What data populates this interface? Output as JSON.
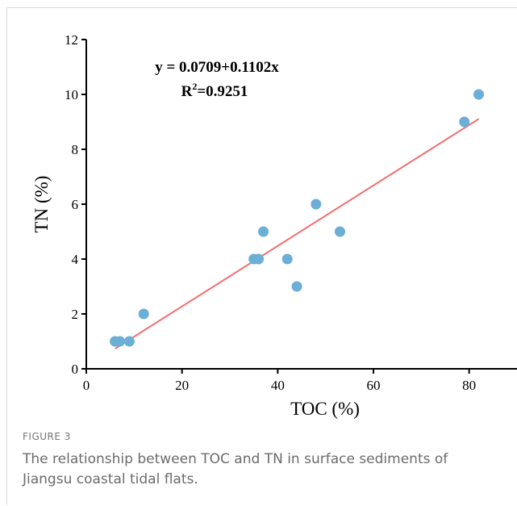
{
  "figure": {
    "label": "FIGURE 3",
    "caption": "The relationship between TOC and TN in surface sediments of Jiangsu coastal tidal flats."
  },
  "chart_data": {
    "type": "scatter",
    "title": "",
    "xlabel": "TOC (%)",
    "ylabel": "TN (%)",
    "xlim": [
      0,
      90
    ],
    "ylim": [
      0,
      12
    ],
    "xticks": [
      0,
      20,
      40,
      60,
      80
    ],
    "yticks": [
      0,
      2,
      4,
      6,
      8,
      10,
      12
    ],
    "grid": false,
    "points_color": "#6baed6",
    "line_color": "#f07070",
    "series": [
      {
        "x": [
          6,
          7,
          9,
          12,
          35,
          36,
          37,
          42,
          44,
          48,
          53,
          79,
          82
        ],
        "y": [
          1,
          1,
          1,
          2,
          4,
          4,
          5,
          4,
          3,
          6,
          5,
          9,
          10
        ]
      }
    ],
    "fit_line": {
      "x": [
        6,
        82
      ],
      "y": [
        0.7321,
        9.1073
      ]
    },
    "annotations": {
      "equation": "y = 0.0709+0.1102x",
      "r2_prefix": "R",
      "r2_sup": "2",
      "r2_value": "=0.9251"
    }
  }
}
